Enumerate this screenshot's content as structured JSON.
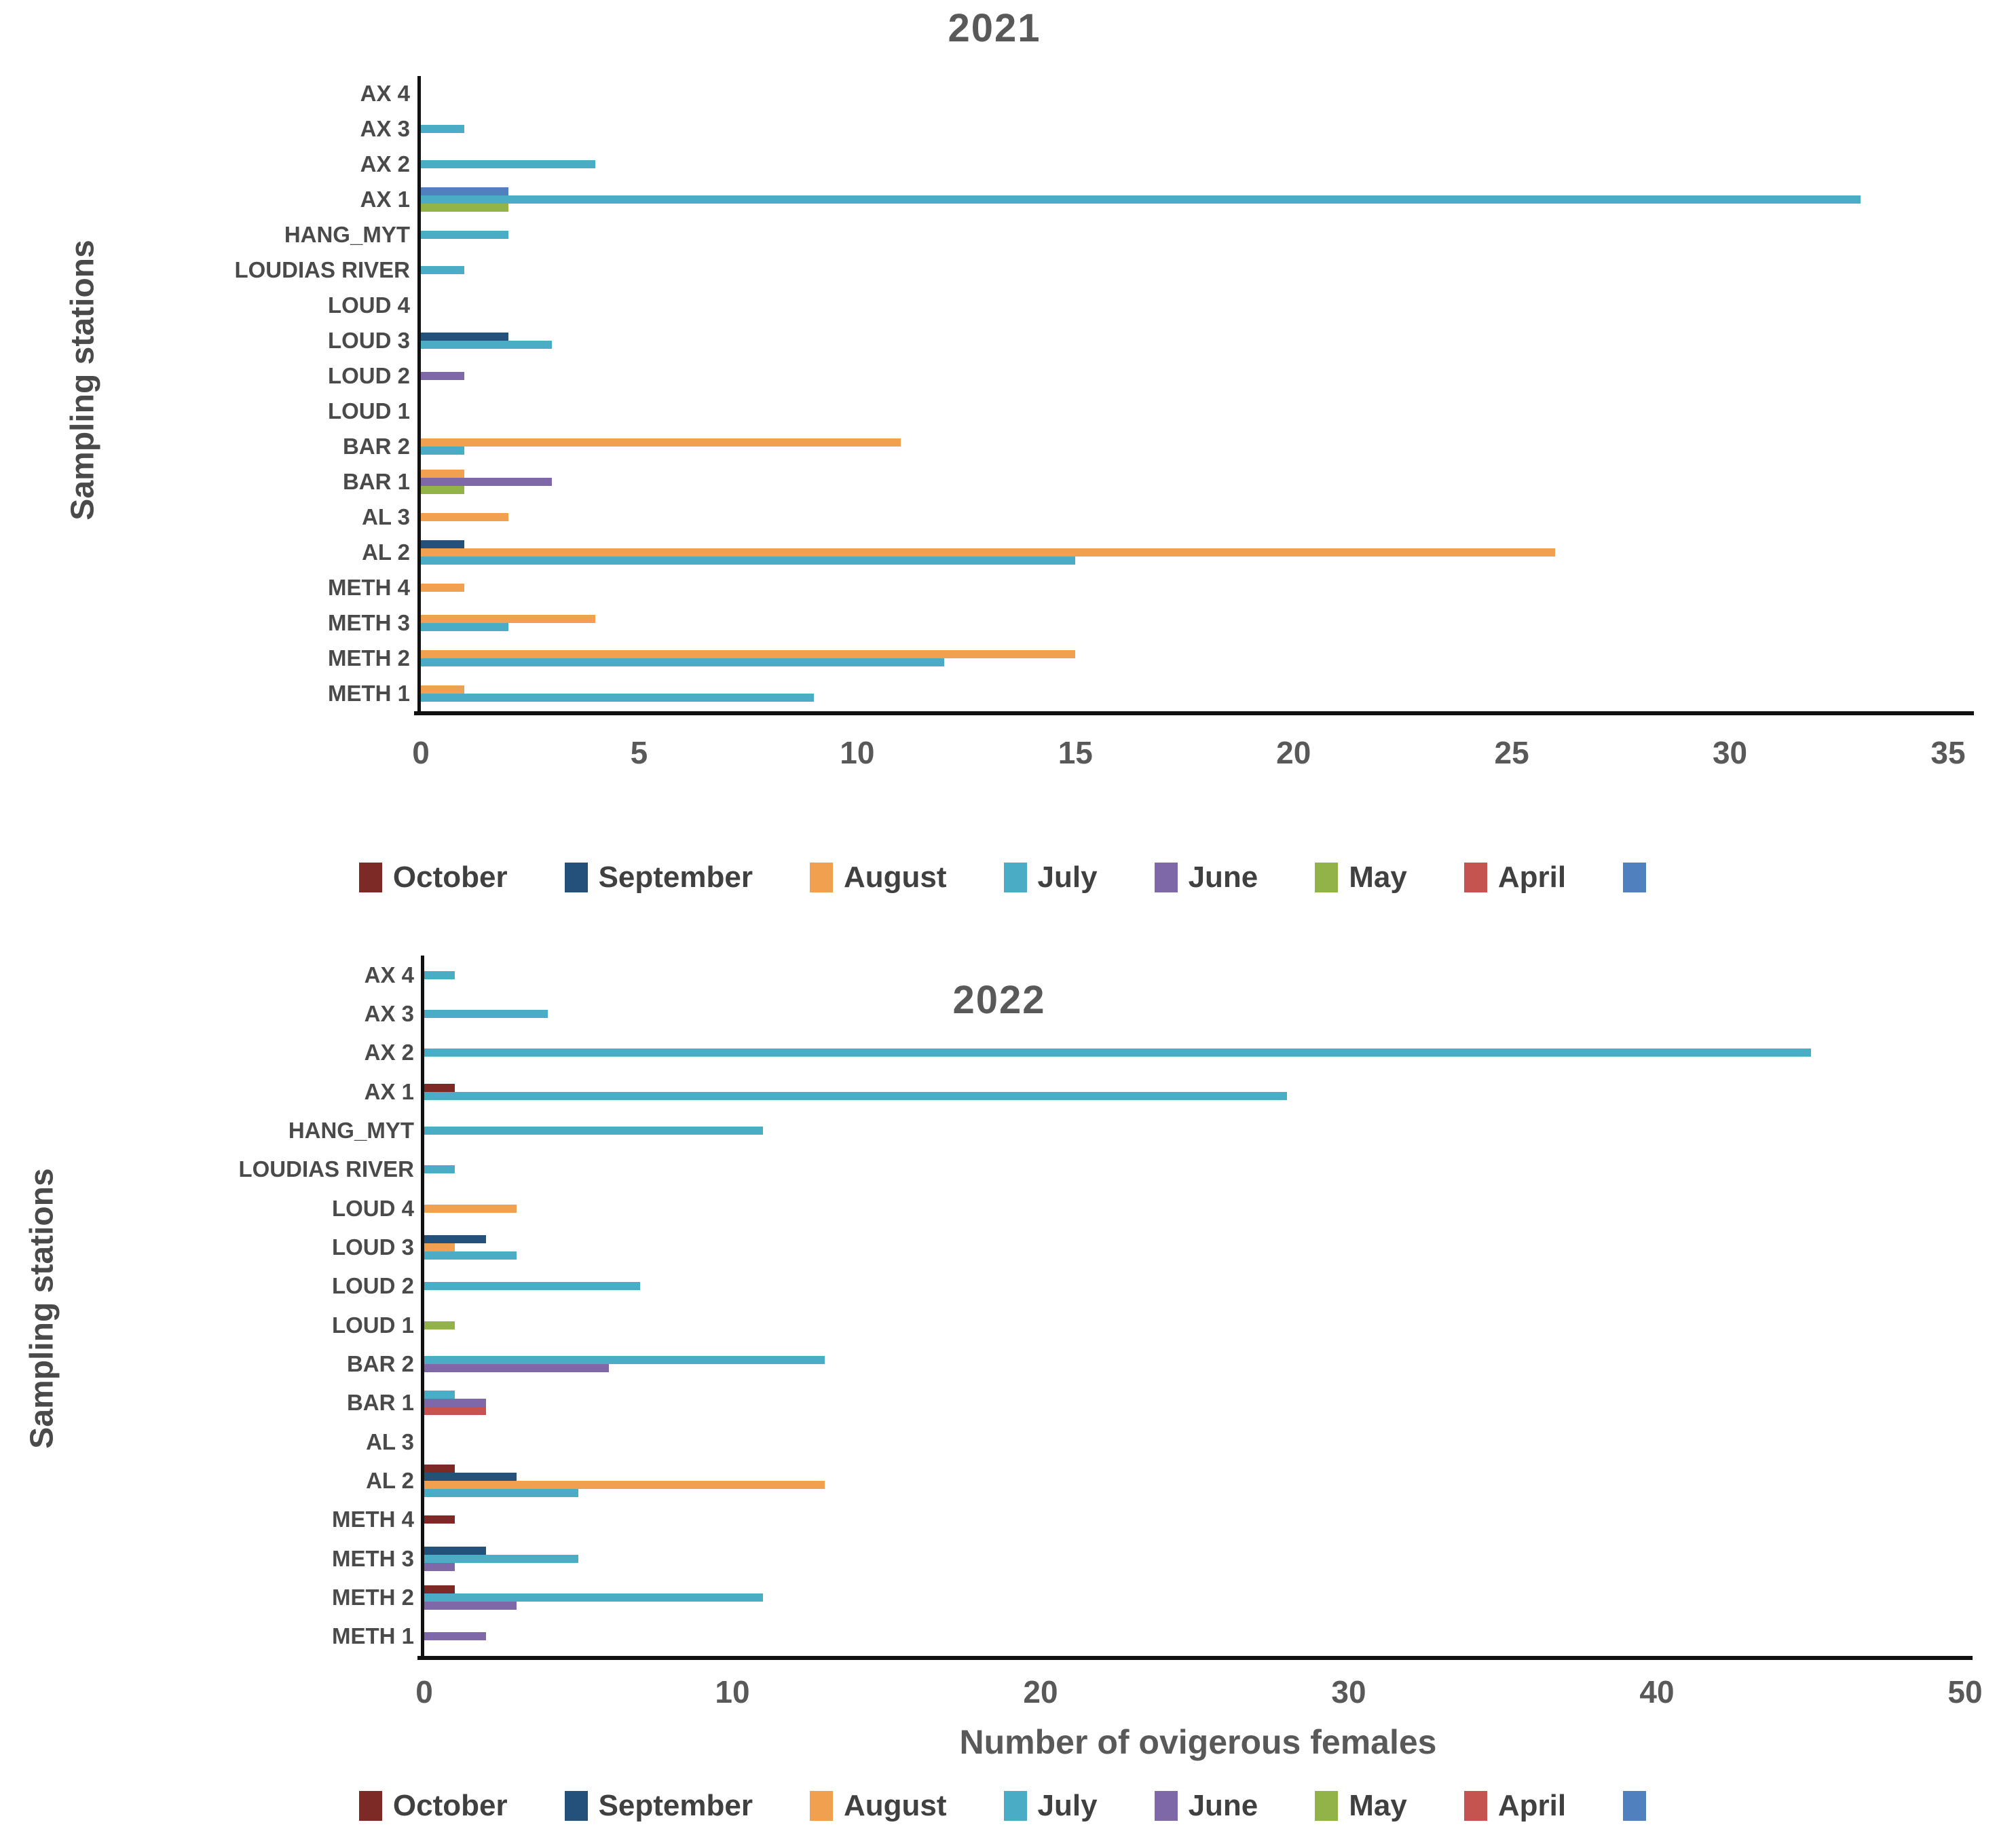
{
  "series_colors": {
    "October": "#7d2a26",
    "September": "#24517c",
    "August": "#f0a04f",
    "July": "#4bacc6",
    "June": "#7e68a8",
    "May": "#92b347",
    "April": "#c5534f",
    "": "#5080bd"
  },
  "chart_data": [
    {
      "type": "bar",
      "orientation": "horizontal",
      "title": "2021",
      "ylabel": "Sampling stations",
      "xlabel": "",
      "xlim": [
        0,
        35
      ],
      "x_ticks": [
        0,
        5,
        10,
        15,
        20,
        25,
        30,
        35
      ],
      "grid": false,
      "legend_position": "bottom",
      "legend": [
        "October",
        "September",
        "August",
        "July",
        "June",
        "May",
        "April",
        ""
      ],
      "categories_top_to_bottom": [
        "AX 4",
        "AX 3",
        "AX 2",
        "AX 1",
        "HANG_MYT",
        "LOUDIAS RIVER",
        "LOUD 4",
        "LOUD 3",
        "LOUD 2",
        "LOUD 1",
        "BAR 2",
        "BAR 1",
        "AL 3",
        "AL 2",
        "METH 4",
        "METH 3",
        "METH 2",
        "METH 1"
      ],
      "rows": [
        {
          "station": "AX 4",
          "bars": []
        },
        {
          "station": "AX 3",
          "bars": [
            {
              "month": "July",
              "value": 1
            }
          ]
        },
        {
          "station": "AX 2",
          "bars": [
            {
              "month": "July",
              "value": 4
            }
          ]
        },
        {
          "station": "AX 1",
          "bars": [
            {
              "month": "",
              "value": 2
            },
            {
              "month": "July",
              "value": 33
            },
            {
              "month": "May",
              "value": 2
            }
          ]
        },
        {
          "station": "HANG_MYT",
          "bars": [
            {
              "month": "July",
              "value": 2
            }
          ]
        },
        {
          "station": "LOUDIAS RIVER",
          "bars": [
            {
              "month": "July",
              "value": 1
            }
          ]
        },
        {
          "station": "LOUD 4",
          "bars": []
        },
        {
          "station": "LOUD 3",
          "bars": [
            {
              "month": "September",
              "value": 2
            },
            {
              "month": "July",
              "value": 3
            }
          ]
        },
        {
          "station": "LOUD 2",
          "bars": [
            {
              "month": "June",
              "value": 1
            }
          ]
        },
        {
          "station": "LOUD 1",
          "bars": []
        },
        {
          "station": "BAR 2",
          "bars": [
            {
              "month": "August",
              "value": 11
            },
            {
              "month": "July",
              "value": 1
            }
          ]
        },
        {
          "station": "BAR 1",
          "bars": [
            {
              "month": "August",
              "value": 1
            },
            {
              "month": "June",
              "value": 3
            },
            {
              "month": "May",
              "value": 1
            }
          ]
        },
        {
          "station": "AL 3",
          "bars": [
            {
              "month": "August",
              "value": 2
            }
          ]
        },
        {
          "station": "AL 2",
          "bars": [
            {
              "month": "September",
              "value": 1
            },
            {
              "month": "August",
              "value": 26
            },
            {
              "month": "July",
              "value": 15
            }
          ]
        },
        {
          "station": "METH 4",
          "bars": [
            {
              "month": "August",
              "value": 1
            }
          ]
        },
        {
          "station": "METH 3",
          "bars": [
            {
              "month": "August",
              "value": 4
            },
            {
              "month": "July",
              "value": 2
            }
          ]
        },
        {
          "station": "METH 2",
          "bars": [
            {
              "month": "August",
              "value": 15
            },
            {
              "month": "July",
              "value": 12
            }
          ]
        },
        {
          "station": "METH 1",
          "bars": [
            {
              "month": "August",
              "value": 1
            },
            {
              "month": "July",
              "value": 9
            }
          ]
        }
      ]
    },
    {
      "type": "bar",
      "orientation": "horizontal",
      "title": "2022",
      "ylabel": "Sampling stations",
      "xlabel": "Number of ovigerous females",
      "xlim": [
        0,
        50
      ],
      "x_ticks": [
        0,
        10,
        20,
        30,
        40,
        50
      ],
      "grid": false,
      "legend_position": "bottom",
      "legend": [
        "October",
        "September",
        "August",
        "July",
        "June",
        "May",
        "April",
        ""
      ],
      "categories_top_to_bottom": [
        "AX 4",
        "AX 3",
        "AX 2",
        "AX 1",
        "HANG_MYT",
        "LOUDIAS RIVER",
        "LOUD 4",
        "LOUD 3",
        "LOUD 2",
        "LOUD 1",
        "BAR 2",
        "BAR 1",
        "AL 3",
        "AL 2",
        "METH 4",
        "METH 3",
        "METH 2",
        "METH 1"
      ],
      "rows": [
        {
          "station": "AX 4",
          "bars": [
            {
              "month": "July",
              "value": 1
            }
          ]
        },
        {
          "station": "AX 3",
          "bars": [
            {
              "month": "July",
              "value": 4
            }
          ]
        },
        {
          "station": "AX 2",
          "bars": [
            {
              "month": "July",
              "value": 45
            }
          ]
        },
        {
          "station": "AX 1",
          "bars": [
            {
              "month": "October",
              "value": 1
            },
            {
              "month": "July",
              "value": 28
            }
          ]
        },
        {
          "station": "HANG_MYT",
          "bars": [
            {
              "month": "July",
              "value": 11
            }
          ]
        },
        {
          "station": "LOUDIAS RIVER",
          "bars": [
            {
              "month": "July",
              "value": 1
            }
          ]
        },
        {
          "station": "LOUD 4",
          "bars": [
            {
              "month": "August",
              "value": 3
            }
          ]
        },
        {
          "station": "LOUD 3",
          "bars": [
            {
              "month": "September",
              "value": 2
            },
            {
              "month": "August",
              "value": 1
            },
            {
              "month": "July",
              "value": 3
            }
          ]
        },
        {
          "station": "LOUD 2",
          "bars": [
            {
              "month": "July",
              "value": 7
            }
          ]
        },
        {
          "station": "LOUD 1",
          "bars": [
            {
              "month": "May",
              "value": 1
            }
          ]
        },
        {
          "station": "BAR 2",
          "bars": [
            {
              "month": "July",
              "value": 13
            },
            {
              "month": "June",
              "value": 6
            }
          ]
        },
        {
          "station": "BAR 1",
          "bars": [
            {
              "month": "July",
              "value": 1
            },
            {
              "month": "June",
              "value": 2
            },
            {
              "month": "April",
              "value": 2
            }
          ]
        },
        {
          "station": "AL 3",
          "bars": []
        },
        {
          "station": "AL 2",
          "bars": [
            {
              "month": "October",
              "value": 1
            },
            {
              "month": "September",
              "value": 3
            },
            {
              "month": "August",
              "value": 13
            },
            {
              "month": "July",
              "value": 5
            }
          ]
        },
        {
          "station": "METH 4",
          "bars": [
            {
              "month": "October",
              "value": 1
            }
          ]
        },
        {
          "station": "METH 3",
          "bars": [
            {
              "month": "September",
              "value": 2
            },
            {
              "month": "July",
              "value": 5
            },
            {
              "month": "June",
              "value": 1
            }
          ]
        },
        {
          "station": "METH 2",
          "bars": [
            {
              "month": "October",
              "value": 1
            },
            {
              "month": "July",
              "value": 11
            },
            {
              "month": "June",
              "value": 3
            }
          ]
        },
        {
          "station": "METH 1",
          "bars": [
            {
              "month": "June",
              "value": 2
            }
          ]
        }
      ]
    }
  ]
}
